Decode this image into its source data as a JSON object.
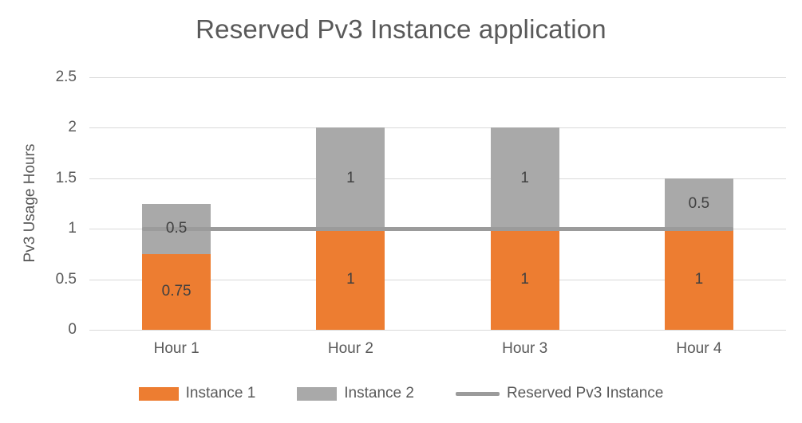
{
  "chart_data": {
    "type": "bar",
    "stacked": true,
    "title": "Reserved Pv3 Instance application",
    "xlabel": "",
    "ylabel": "Pv3 Usage Hours",
    "categories": [
      "Hour 1",
      "Hour 2",
      "Hour 3",
      "Hour 4"
    ],
    "series": [
      {
        "name": "Instance 1",
        "kind": "bar",
        "color": "#ED7D31",
        "values": [
          0.75,
          1,
          1,
          1
        ]
      },
      {
        "name": "Instance 2",
        "kind": "bar",
        "color": "#A9A9A9",
        "values": [
          0.5,
          1,
          1,
          0.5
        ]
      },
      {
        "name": "Reserved Pv3 Instance",
        "kind": "line",
        "color": "#9B9B9B",
        "values": [
          1,
          1,
          1,
          1
        ]
      }
    ],
    "ylim": [
      0,
      2.5
    ],
    "yticks": [
      0,
      0.5,
      1,
      1.5,
      2,
      2.5
    ],
    "grid": true,
    "legend_position": "bottom",
    "data_labels": true,
    "colors": {
      "title_text": "#595959",
      "axis_text": "#595959",
      "data_label_text": "#404040",
      "gridline": "#D9D9D9"
    }
  }
}
